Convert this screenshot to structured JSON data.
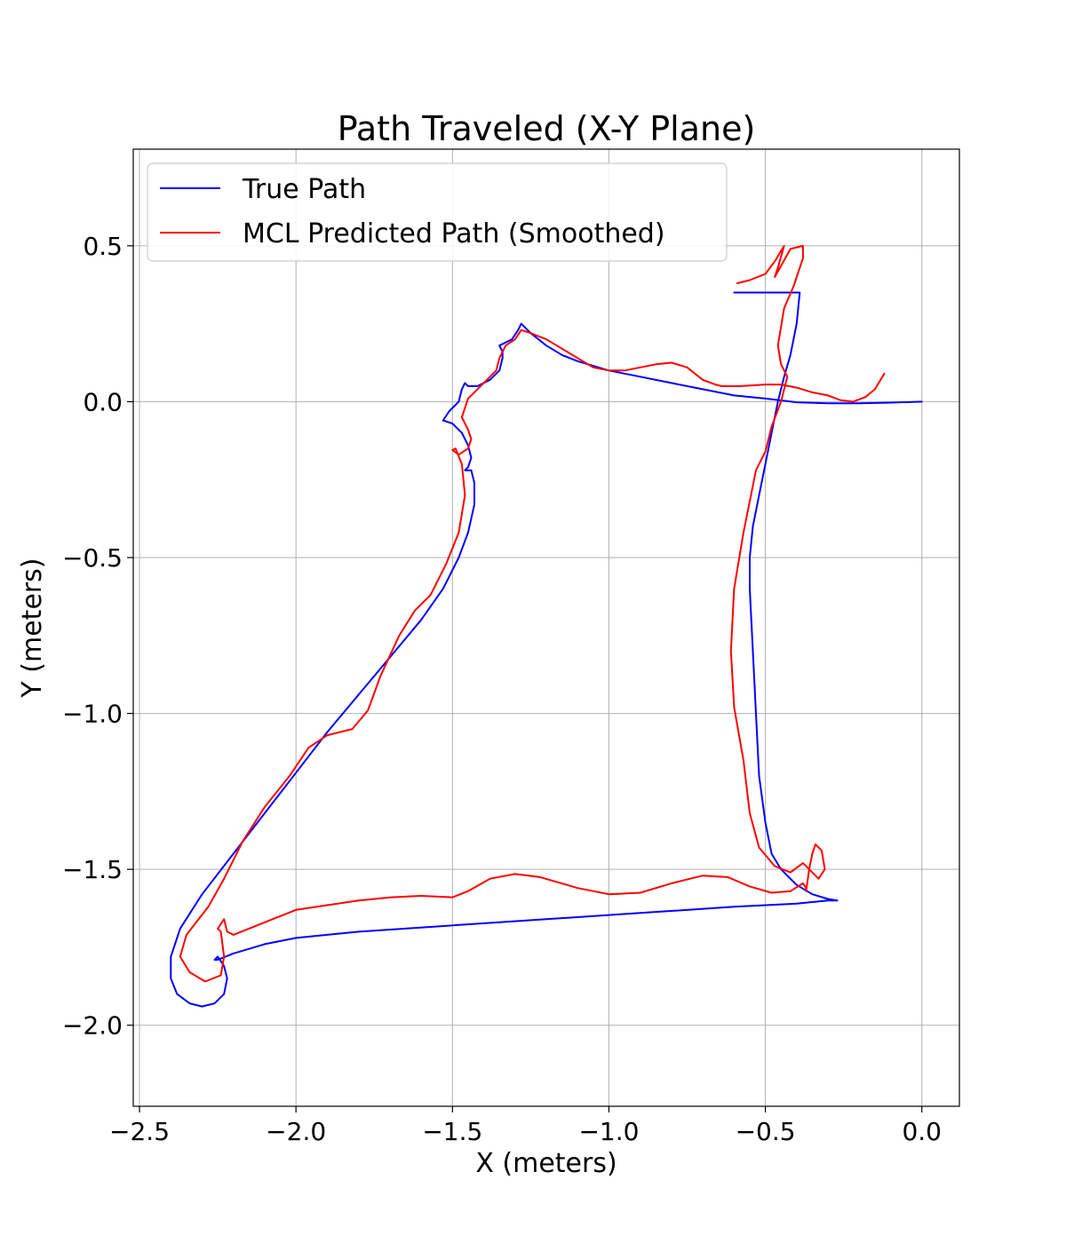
{
  "chart_data": {
    "type": "line",
    "title": "Path Traveled (X-Y Plane)",
    "xlabel": "X (meters)",
    "ylabel": "Y (meters)",
    "xlim": [
      -2.52,
      0.12
    ],
    "ylim": [
      -2.26,
      0.81
    ],
    "xticks": [
      -2.5,
      -2.0,
      -1.5,
      -1.0,
      -0.5,
      0.0
    ],
    "yticks": [
      0.5,
      0.0,
      -0.5,
      -1.0,
      -1.5,
      -2.0
    ],
    "xtick_labels": [
      "−2.5",
      "−2.0",
      "−1.5",
      "−1.0",
      "−0.5",
      "0.0"
    ],
    "ytick_labels": [
      "0.5",
      "0.0",
      "−0.5",
      "−1.0",
      "−1.5",
      "−2.0"
    ],
    "grid": true,
    "legend_position": "top-left",
    "series": [
      {
        "name": "True Path",
        "color": "#0000ff",
        "points": [
          [
            0.0,
            0.0
          ],
          [
            -0.1,
            -0.003
          ],
          [
            -0.2,
            -0.005
          ],
          [
            -0.3,
            -0.005
          ],
          [
            -0.4,
            -0.002
          ],
          [
            -0.5,
            0.01
          ],
          [
            -0.6,
            0.02
          ],
          [
            -0.7,
            0.04
          ],
          [
            -0.8,
            0.06
          ],
          [
            -0.9,
            0.08
          ],
          [
            -1.0,
            0.1
          ],
          [
            -1.1,
            0.13
          ],
          [
            -1.15,
            0.15
          ],
          [
            -1.2,
            0.18
          ],
          [
            -1.25,
            0.22
          ],
          [
            -1.28,
            0.25
          ],
          [
            -1.29,
            0.23
          ],
          [
            -1.31,
            0.2
          ],
          [
            -1.35,
            0.18
          ],
          [
            -1.34,
            0.16
          ],
          [
            -1.34,
            0.14
          ],
          [
            -1.35,
            0.1
          ],
          [
            -1.38,
            0.07
          ],
          [
            -1.42,
            0.05
          ],
          [
            -1.45,
            0.05
          ],
          [
            -1.46,
            0.06
          ],
          [
            -1.47,
            0.04
          ],
          [
            -1.48,
            0.0
          ],
          [
            -1.51,
            -0.03
          ],
          [
            -1.53,
            -0.06
          ],
          [
            -1.5,
            -0.07
          ],
          [
            -1.47,
            -0.1
          ],
          [
            -1.45,
            -0.14
          ],
          [
            -1.44,
            -0.18
          ],
          [
            -1.45,
            -0.21
          ],
          [
            -1.46,
            -0.22
          ],
          [
            -1.44,
            -0.22
          ],
          [
            -1.43,
            -0.26
          ],
          [
            -1.43,
            -0.33
          ],
          [
            -1.45,
            -0.42
          ],
          [
            -1.48,
            -0.5
          ],
          [
            -1.53,
            -0.6
          ],
          [
            -1.6,
            -0.7
          ],
          [
            -1.7,
            -0.82
          ],
          [
            -1.8,
            -0.94
          ],
          [
            -1.9,
            -1.06
          ],
          [
            -2.0,
            -1.19
          ],
          [
            -2.1,
            -1.32
          ],
          [
            -2.2,
            -1.45
          ],
          [
            -2.3,
            -1.58
          ],
          [
            -2.37,
            -1.69
          ],
          [
            -2.4,
            -1.78
          ],
          [
            -2.4,
            -1.85
          ],
          [
            -2.38,
            -1.9
          ],
          [
            -2.34,
            -1.93
          ],
          [
            -2.3,
            -1.94
          ],
          [
            -2.26,
            -1.93
          ],
          [
            -2.23,
            -1.9
          ],
          [
            -2.22,
            -1.85
          ],
          [
            -2.23,
            -1.81
          ],
          [
            -2.25,
            -1.78
          ],
          [
            -2.26,
            -1.79
          ],
          [
            -2.25,
            -1.79
          ],
          [
            -2.2,
            -1.77
          ],
          [
            -2.1,
            -1.74
          ],
          [
            -2.0,
            -1.72
          ],
          [
            -1.8,
            -1.7
          ],
          [
            -1.5,
            -1.68
          ],
          [
            -1.2,
            -1.66
          ],
          [
            -0.9,
            -1.64
          ],
          [
            -0.6,
            -1.62
          ],
          [
            -0.4,
            -1.61
          ],
          [
            -0.3,
            -1.6
          ],
          [
            -0.27,
            -1.6
          ],
          [
            -0.3,
            -1.595
          ],
          [
            -0.35,
            -1.58
          ],
          [
            -0.4,
            -1.55
          ],
          [
            -0.45,
            -1.5
          ],
          [
            -0.48,
            -1.45
          ],
          [
            -0.5,
            -1.35
          ],
          [
            -0.52,
            -1.2
          ],
          [
            -0.53,
            -1.0
          ],
          [
            -0.54,
            -0.8
          ],
          [
            -0.55,
            -0.6
          ],
          [
            -0.55,
            -0.5
          ],
          [
            -0.54,
            -0.4
          ],
          [
            -0.52,
            -0.3
          ],
          [
            -0.5,
            -0.2
          ],
          [
            -0.48,
            -0.1
          ],
          [
            -0.46,
            0.0
          ],
          [
            -0.44,
            0.08
          ],
          [
            -0.42,
            0.15
          ],
          [
            -0.4,
            0.25
          ],
          [
            -0.39,
            0.35
          ],
          [
            -0.6,
            0.35
          ]
        ]
      },
      {
        "name": "MCL Predicted Path (Smoothed)",
        "color": "#ff0000",
        "points": [
          [
            -0.12,
            0.09
          ],
          [
            -0.15,
            0.04
          ],
          [
            -0.18,
            0.015
          ],
          [
            -0.22,
            0.0
          ],
          [
            -0.26,
            0.005
          ],
          [
            -0.3,
            0.02
          ],
          [
            -0.35,
            0.03
          ],
          [
            -0.4,
            0.045
          ],
          [
            -0.45,
            0.055
          ],
          [
            -0.5,
            0.055
          ],
          [
            -0.58,
            0.05
          ],
          [
            -0.64,
            0.05
          ],
          [
            -0.66,
            0.055
          ],
          [
            -0.7,
            0.07
          ],
          [
            -0.75,
            0.11
          ],
          [
            -0.8,
            0.125
          ],
          [
            -0.85,
            0.12
          ],
          [
            -0.9,
            0.11
          ],
          [
            -0.95,
            0.1
          ],
          [
            -1.0,
            0.1
          ],
          [
            -1.05,
            0.11
          ],
          [
            -1.1,
            0.14
          ],
          [
            -1.15,
            0.17
          ],
          [
            -1.2,
            0.2
          ],
          [
            -1.25,
            0.22
          ],
          [
            -1.28,
            0.23
          ],
          [
            -1.3,
            0.2
          ],
          [
            -1.33,
            0.18
          ],
          [
            -1.35,
            0.14
          ],
          [
            -1.36,
            0.1
          ],
          [
            -1.4,
            0.06
          ],
          [
            -1.43,
            0.03
          ],
          [
            -1.45,
            0.01
          ],
          [
            -1.46,
            -0.02
          ],
          [
            -1.47,
            -0.05
          ],
          [
            -1.45,
            -0.09
          ],
          [
            -1.44,
            -0.12
          ],
          [
            -1.45,
            -0.15
          ],
          [
            -1.48,
            -0.17
          ],
          [
            -1.5,
            -0.155
          ],
          [
            -1.49,
            -0.15
          ],
          [
            -1.47,
            -0.2
          ],
          [
            -1.46,
            -0.3
          ],
          [
            -1.48,
            -0.42
          ],
          [
            -1.52,
            -0.52
          ],
          [
            -1.57,
            -0.62
          ],
          [
            -1.62,
            -0.67
          ],
          [
            -1.67,
            -0.75
          ],
          [
            -1.73,
            -0.88
          ],
          [
            -1.77,
            -0.99
          ],
          [
            -1.82,
            -1.05
          ],
          [
            -1.9,
            -1.07
          ],
          [
            -1.96,
            -1.11
          ],
          [
            -2.02,
            -1.2
          ],
          [
            -2.1,
            -1.3
          ],
          [
            -2.17,
            -1.41
          ],
          [
            -2.23,
            -1.53
          ],
          [
            -2.28,
            -1.62
          ],
          [
            -2.35,
            -1.71
          ],
          [
            -2.37,
            -1.78
          ],
          [
            -2.34,
            -1.83
          ],
          [
            -2.29,
            -1.86
          ],
          [
            -2.24,
            -1.84
          ],
          [
            -2.23,
            -1.78
          ],
          [
            -2.24,
            -1.7
          ],
          [
            -2.25,
            -1.69
          ],
          [
            -2.23,
            -1.66
          ],
          [
            -2.22,
            -1.7
          ],
          [
            -2.2,
            -1.71
          ],
          [
            -2.1,
            -1.67
          ],
          [
            -2.0,
            -1.63
          ],
          [
            -1.9,
            -1.615
          ],
          [
            -1.8,
            -1.6
          ],
          [
            -1.7,
            -1.59
          ],
          [
            -1.6,
            -1.585
          ],
          [
            -1.5,
            -1.59
          ],
          [
            -1.45,
            -1.57
          ],
          [
            -1.38,
            -1.53
          ],
          [
            -1.3,
            -1.515
          ],
          [
            -1.22,
            -1.525
          ],
          [
            -1.1,
            -1.56
          ],
          [
            -1.0,
            -1.58
          ],
          [
            -0.9,
            -1.575
          ],
          [
            -0.8,
            -1.545
          ],
          [
            -0.7,
            -1.52
          ],
          [
            -0.62,
            -1.525
          ],
          [
            -0.55,
            -1.555
          ],
          [
            -0.48,
            -1.575
          ],
          [
            -0.42,
            -1.57
          ],
          [
            -0.38,
            -1.545
          ],
          [
            -0.37,
            -1.56
          ],
          [
            -0.37,
            -1.57
          ],
          [
            -0.36,
            -1.5
          ],
          [
            -0.35,
            -1.45
          ],
          [
            -0.34,
            -1.42
          ],
          [
            -0.32,
            -1.44
          ],
          [
            -0.31,
            -1.5
          ],
          [
            -0.33,
            -1.53
          ],
          [
            -0.36,
            -1.5
          ],
          [
            -0.38,
            -1.48
          ],
          [
            -0.42,
            -1.51
          ],
          [
            -0.47,
            -1.49
          ],
          [
            -0.52,
            -1.43
          ],
          [
            -0.55,
            -1.32
          ],
          [
            -0.57,
            -1.15
          ],
          [
            -0.6,
            -0.98
          ],
          [
            -0.61,
            -0.8
          ],
          [
            -0.6,
            -0.6
          ],
          [
            -0.57,
            -0.42
          ],
          [
            -0.53,
            -0.22
          ],
          [
            -0.5,
            -0.16
          ],
          [
            -0.48,
            -0.08
          ],
          [
            -0.45,
            0.0
          ],
          [
            -0.43,
            0.08
          ],
          [
            -0.45,
            0.12
          ],
          [
            -0.46,
            0.18
          ],
          [
            -0.44,
            0.3
          ],
          [
            -0.41,
            0.37
          ],
          [
            -0.38,
            0.46
          ],
          [
            -0.38,
            0.5
          ],
          [
            -0.42,
            0.49
          ],
          [
            -0.47,
            0.4
          ],
          [
            -0.46,
            0.43
          ],
          [
            -0.44,
            0.5
          ],
          [
            -0.47,
            0.45
          ],
          [
            -0.5,
            0.41
          ],
          [
            -0.55,
            0.39
          ],
          [
            -0.59,
            0.38
          ]
        ]
      }
    ]
  }
}
